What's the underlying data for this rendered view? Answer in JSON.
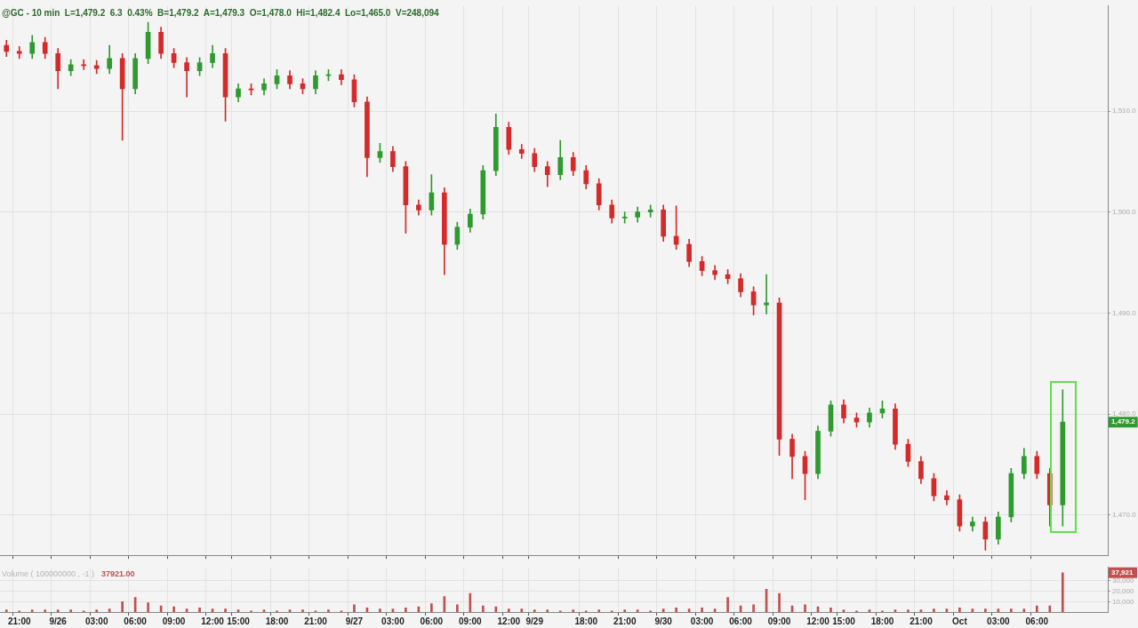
{
  "chart_data": [
    {
      "type": "candlestick",
      "title": "@GC - 10 min  L=1,479.2  6.3  0.43%  B=1,479.2  A=1,479.3  O=1,478.0  Hi=1,482.4  Lo=1,465.0  V=248,094",
      "categories": [
        null,
        null,
        null,
        null,
        null,
        null,
        null,
        null,
        null,
        null,
        null,
        null,
        null,
        null,
        null,
        null,
        null,
        null,
        null,
        null,
        null,
        null,
        null,
        null,
        null,
        null,
        null,
        null,
        null,
        null,
        null,
        null,
        null,
        null,
        null,
        null,
        null,
        null,
        null,
        null,
        null,
        null,
        null,
        null,
        null,
        null,
        null,
        null,
        null,
        null,
        null,
        null,
        null,
        null,
        null,
        null,
        null,
        null,
        null,
        null,
        null,
        null,
        null,
        null,
        null,
        null,
        null,
        null,
        null,
        null,
        null,
        null,
        null,
        null,
        null,
        null,
        null,
        null,
        null,
        null,
        null,
        null,
        null,
        null,
        null,
        null
      ],
      "ohlc": [
        [
          1516.5,
          1517.0,
          1515.4,
          1515.9
        ],
        [
          1515.9,
          1516.4,
          1515.2,
          1515.7
        ],
        [
          1515.7,
          1517.5,
          1515.2,
          1516.8
        ],
        [
          1516.8,
          1517.3,
          1515.2,
          1515.7
        ],
        [
          1515.7,
          1516.2,
          1512.2,
          1514.0
        ],
        [
          1514.0,
          1515.1,
          1513.5,
          1514.6
        ],
        [
          1514.6,
          1515.1,
          1514.1,
          1514.5
        ],
        [
          1514.5,
          1515.0,
          1513.7,
          1514.2
        ],
        [
          1514.2,
          1516.5,
          1513.7,
          1515.2
        ],
        [
          1515.2,
          1515.7,
          1507.1,
          1512.2
        ],
        [
          1512.2,
          1515.7,
          1511.7,
          1515.2
        ],
        [
          1515.2,
          1518.8,
          1514.7,
          1517.8
        ],
        [
          1517.8,
          1518.3,
          1515.2,
          1515.7
        ],
        [
          1515.7,
          1516.2,
          1514.3,
          1514.8
        ],
        [
          1514.8,
          1515.3,
          1511.4,
          1514.0
        ],
        [
          1514.0,
          1515.3,
          1513.5,
          1514.8
        ],
        [
          1514.8,
          1516.5,
          1514.3,
          1515.7
        ],
        [
          1515.7,
          1516.2,
          1509.0,
          1511.4
        ],
        [
          1511.4,
          1512.7,
          1510.9,
          1512.2
        ],
        [
          1512.2,
          1512.7,
          1511.6,
          1512.1
        ],
        [
          1512.1,
          1513.2,
          1511.6,
          1512.7
        ],
        [
          1512.7,
          1514.1,
          1512.2,
          1513.5
        ],
        [
          1513.5,
          1514.0,
          1512.2,
          1512.7
        ],
        [
          1512.7,
          1513.2,
          1511.7,
          1512.2
        ],
        [
          1512.2,
          1514.0,
          1511.7,
          1513.5
        ],
        [
          1513.5,
          1514.1,
          1513.0,
          1513.6
        ],
        [
          1513.6,
          1514.1,
          1512.6,
          1513.1
        ],
        [
          1513.1,
          1513.6,
          1510.4,
          1510.9
        ],
        [
          1510.9,
          1511.4,
          1503.5,
          1505.4
        ],
        [
          1505.4,
          1506.8,
          1504.9,
          1506.0
        ],
        [
          1506.0,
          1506.5,
          1504.0,
          1504.5
        ],
        [
          1504.5,
          1505.0,
          1497.9,
          1500.7
        ],
        [
          1500.7,
          1501.2,
          1499.7,
          1500.2
        ],
        [
          1500.2,
          1503.7,
          1499.7,
          1501.9
        ],
        [
          1501.9,
          1502.4,
          1493.8,
          1496.8
        ],
        [
          1496.8,
          1499.0,
          1496.3,
          1498.5
        ],
        [
          1498.5,
          1500.3,
          1498.0,
          1499.8
        ],
        [
          1499.8,
          1504.6,
          1499.3,
          1504.1
        ],
        [
          1504.1,
          1509.7,
          1503.6,
          1508.4
        ],
        [
          1508.4,
          1508.9,
          1505.7,
          1506.2
        ],
        [
          1506.2,
          1506.7,
          1505.3,
          1505.8
        ],
        [
          1505.8,
          1506.3,
          1504.0,
          1504.5
        ],
        [
          1504.5,
          1505.0,
          1502.5,
          1503.7
        ],
        [
          1503.7,
          1507.1,
          1503.2,
          1505.4
        ],
        [
          1505.4,
          1505.9,
          1503.6,
          1504.1
        ],
        [
          1504.1,
          1504.6,
          1502.3,
          1502.8
        ],
        [
          1502.8,
          1503.3,
          1500.2,
          1500.7
        ],
        [
          1500.7,
          1501.2,
          1498.9,
          1499.4
        ],
        [
          1499.4,
          1500.0,
          1498.9,
          1499.5
        ],
        [
          1499.5,
          1500.5,
          1499.0,
          1500.0
        ],
        [
          1500.0,
          1500.7,
          1499.5,
          1500.2
        ],
        [
          1500.2,
          1500.7,
          1497.1,
          1497.6
        ],
        [
          1497.6,
          1500.6,
          1496.3,
          1496.8
        ],
        [
          1496.8,
          1497.3,
          1494.6,
          1495.1
        ],
        [
          1495.1,
          1495.6,
          1493.7,
          1494.2
        ],
        [
          1494.2,
          1494.7,
          1493.3,
          1493.8
        ],
        [
          1493.8,
          1494.3,
          1492.9,
          1493.4
        ],
        [
          1493.4,
          1493.9,
          1491.6,
          1492.1
        ],
        [
          1492.1,
          1492.6,
          1489.8,
          1490.8
        ],
        [
          1490.8,
          1493.8,
          1489.9,
          1491.0
        ],
        [
          1491.0,
          1491.5,
          1475.9,
          1477.5
        ],
        [
          1477.5,
          1478.0,
          1473.6,
          1475.8
        ],
        [
          1475.8,
          1476.3,
          1471.5,
          1474.1
        ],
        [
          1474.1,
          1478.8,
          1473.6,
          1478.3
        ],
        [
          1478.3,
          1481.3,
          1477.8,
          1480.9
        ],
        [
          1480.9,
          1481.4,
          1479.1,
          1479.6
        ],
        [
          1479.6,
          1480.1,
          1478.7,
          1479.2
        ],
        [
          1479.2,
          1480.6,
          1478.7,
          1480.1
        ],
        [
          1480.1,
          1481.3,
          1479.6,
          1480.5
        ],
        [
          1480.5,
          1481.0,
          1476.5,
          1477.0
        ],
        [
          1477.0,
          1477.5,
          1474.8,
          1475.3
        ],
        [
          1475.3,
          1475.8,
          1473.1,
          1473.6
        ],
        [
          1473.6,
          1474.1,
          1471.4,
          1471.9
        ],
        [
          1471.9,
          1472.4,
          1471.0,
          1471.5
        ],
        [
          1471.5,
          1472.0,
          1468.4,
          1468.9
        ],
        [
          1468.9,
          1469.8,
          1468.4,
          1469.3
        ],
        [
          1469.3,
          1469.8,
          1466.5,
          1467.6
        ],
        [
          1467.6,
          1470.3,
          1467.1,
          1469.8
        ],
        [
          1469.8,
          1474.6,
          1469.3,
          1474.1
        ],
        [
          1474.1,
          1476.6,
          1473.6,
          1475.8
        ],
        [
          1475.8,
          1476.3,
          1473.6,
          1474.1
        ],
        [
          1474.1,
          1474.6,
          1468.9,
          1471.0
        ],
        [
          1471.0,
          1482.4,
          1468.9,
          1479.2
        ],
        null,
        null,
        null
      ],
      "ylim": [
        1466,
        1520.4
      ],
      "yticks": [
        {
          "value": 1470,
          "label": "1,470.0"
        },
        {
          "value": 1480,
          "label": "1,480.0"
        },
        {
          "value": 1490,
          "label": "1,490.0"
        },
        {
          "value": 1500,
          "label": "1,500.0"
        },
        {
          "value": 1510,
          "label": "1,510.0"
        }
      ],
      "grid": true,
      "tick_labels": "y",
      "annotations": [
        {
          "text": "1,479.2",
          "y": 1479.2
        }
      ]
    },
    {
      "type": "bar",
      "title": "Volume ( 100000000 , -1 )",
      "categories": [
        null,
        "21:00",
        null,
        null,
        "9/26",
        null,
        null,
        "03:00",
        null,
        null,
        "06:00",
        null,
        null,
        "09:00",
        null,
        null,
        "12:00",
        null,
        "15:00",
        null,
        null,
        "18:00",
        null,
        null,
        "21:00",
        null,
        null,
        "9/27",
        null,
        null,
        "03:00",
        null,
        null,
        "06:00",
        null,
        null,
        "09:00",
        null,
        null,
        "12:00",
        null,
        "9/29",
        null,
        null,
        null,
        "18:00",
        null,
        null,
        "21:00",
        null,
        null,
        "9/30",
        null,
        null,
        "03:00",
        null,
        null,
        "06:00",
        null,
        null,
        "09:00",
        null,
        null,
        "12:00",
        null,
        "15:00",
        null,
        null,
        "18:00",
        null,
        null,
        "21:00",
        null,
        null,
        "Oct",
        null,
        null,
        "03:00",
        null,
        null,
        "06:00",
        null,
        null,
        null,
        null,
        null
      ],
      "series": [
        {
          "color": "#c0504d",
          "values": [
            2000,
            1000,
            2000,
            2000,
            2000,
            2000,
            1000,
            2000,
            3000,
            10000,
            14000,
            9000,
            6000,
            5000,
            3000,
            4000,
            3000,
            3000,
            2000,
            1000,
            2000,
            1000,
            2000,
            2000,
            1000,
            2000,
            1000,
            7000,
            4000,
            3000,
            3000,
            4000,
            5000,
            8000,
            15000,
            7000,
            18000,
            6000,
            5000,
            3000,
            3000,
            2000,
            2000,
            1000,
            2000,
            1000,
            2000,
            1000,
            2000,
            2000,
            1000,
            3000,
            4000,
            3000,
            4000,
            3000,
            14000,
            6000,
            7000,
            22000,
            18000,
            6000,
            7000,
            5000,
            4000,
            2000,
            1000,
            2000,
            1000,
            2000,
            2000,
            2000,
            3000,
            3000,
            4000,
            3000,
            3000,
            3000,
            3000,
            3000,
            6000,
            6000,
            37921,
            null,
            null,
            null
          ]
        }
      ],
      "ylim": [
        0,
        43000
      ],
      "yticks": [
        {
          "value": 10000,
          "label": "10,000"
        },
        {
          "value": 20000,
          "label": "20,000"
        },
        {
          "value": 30000,
          "label": "30,000"
        }
      ],
      "grid": true,
      "annotations": [
        "37921.00",
        {
          "text": "37,921",
          "y": 37921
        }
      ]
    }
  ]
}
